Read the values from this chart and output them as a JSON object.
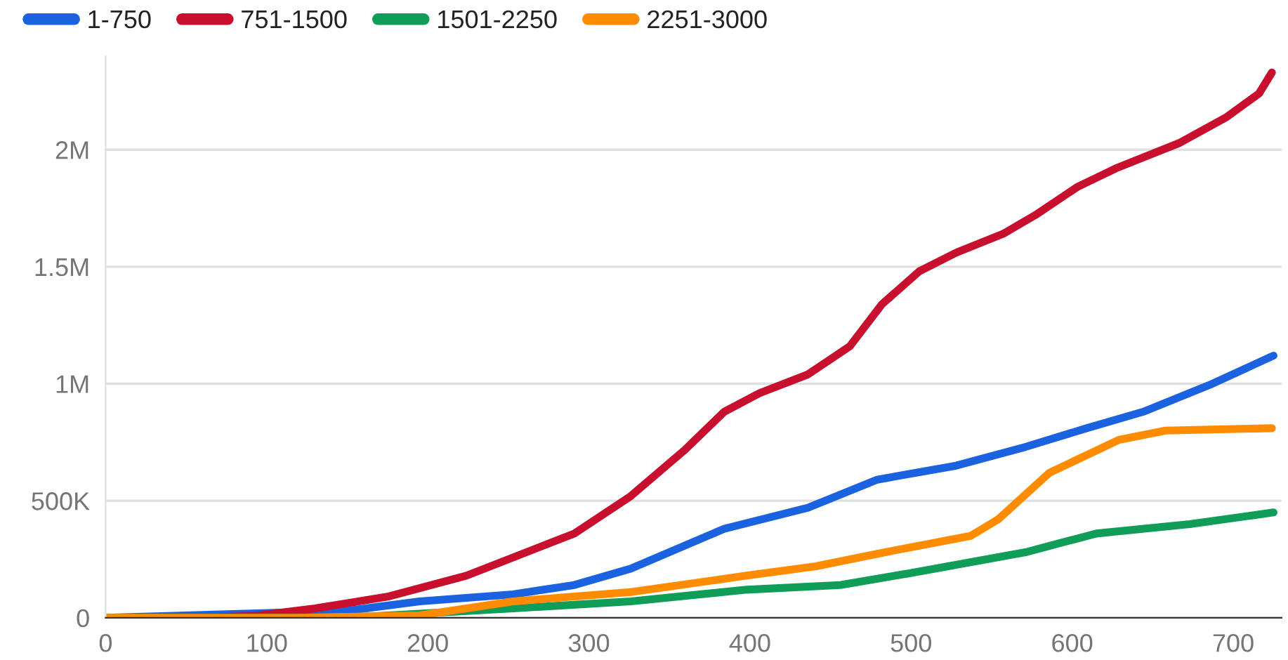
{
  "chart_data": {
    "type": "line",
    "series": [
      {
        "name": "1-750",
        "color": "#1a62e0",
        "x": [
          0,
          150,
          195,
          253,
          291,
          326,
          384,
          436,
          479,
          528,
          571,
          609,
          644,
          687,
          725
        ],
        "values": [
          0,
          30000,
          70000,
          100000,
          140000,
          210000,
          380000,
          470000,
          590000,
          650000,
          730000,
          810000,
          880000,
          1000000,
          1120000
        ]
      },
      {
        "name": "751-1500",
        "color": "#c8102e",
        "x": [
          0,
          65,
          95,
          130,
          175,
          224,
          291,
          326,
          360,
          384,
          406,
          436,
          462,
          482,
          505,
          528,
          557,
          577,
          603,
          627,
          667,
          696,
          716,
          724
        ],
        "values": [
          0,
          0,
          10000,
          40000,
          90000,
          180000,
          360000,
          520000,
          720000,
          880000,
          960000,
          1040000,
          1160000,
          1340000,
          1480000,
          1560000,
          1640000,
          1720000,
          1840000,
          1920000,
          2030000,
          2140000,
          2240000,
          2330000
        ]
      },
      {
        "name": "1501-2250",
        "color": "#0f9d58",
        "x": [
          0,
          150,
          253,
          326,
          398,
          456,
          499,
          571,
          615,
          673,
          725
        ],
        "values": [
          0,
          0,
          40000,
          70000,
          120000,
          140000,
          190000,
          280000,
          360000,
          400000,
          450000
        ]
      },
      {
        "name": "2251-3000",
        "color": "#ff8c00",
        "x": [
          0,
          120,
          195,
          253,
          326,
          398,
          441,
          484,
          537,
          554,
          586,
          629,
          658,
          724
        ],
        "values": [
          0,
          0,
          10000,
          70000,
          110000,
          180000,
          220000,
          280000,
          350000,
          420000,
          620000,
          760000,
          800000,
          810000
        ]
      }
    ],
    "xlim": [
      0,
      730
    ],
    "xticks": [
      0,
      100,
      200,
      300,
      400,
      500,
      600,
      700
    ],
    "ylim": [
      0,
      2400000
    ],
    "yticks": [
      {
        "value": 0,
        "label": "0"
      },
      {
        "value": 500000,
        "label": "500K"
      },
      {
        "value": 1000000,
        "label": "1M"
      },
      {
        "value": 1500000,
        "label": "1.5M"
      },
      {
        "value": 2000000,
        "label": "2M"
      }
    ],
    "grid": "y",
    "legend": "top left",
    "marker": "none",
    "line_style": "solid"
  }
}
